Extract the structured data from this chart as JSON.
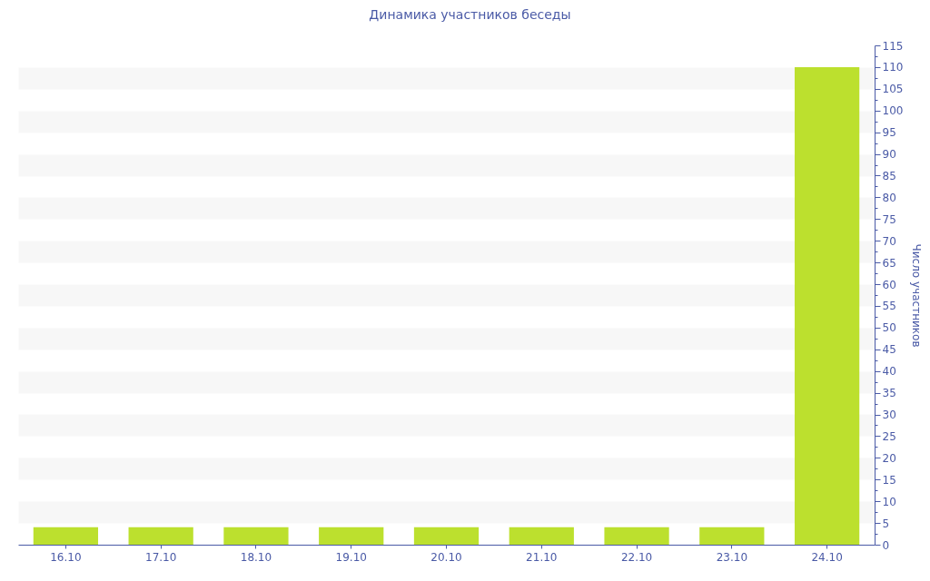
{
  "chart_data": {
    "type": "bar",
    "title": "Динамика участников беседы",
    "ylabel": "Число участников",
    "categories": [
      "16.10",
      "17.10",
      "18.10",
      "19.10",
      "20.10",
      "21.10",
      "22.10",
      "23.10",
      "24.10"
    ],
    "values": [
      4,
      4,
      4,
      4,
      4,
      4,
      4,
      4,
      110
    ],
    "color": "#bce02e",
    "ylim": [
      0,
      115
    ],
    "yticks": [
      0,
      {
        "value": 2.5,
        "label": null
      },
      5,
      {
        "value": 7.5,
        "label": null
      },
      10,
      {
        "value": 12.5,
        "label": null
      },
      15,
      {
        "value": 17.5,
        "label": null
      },
      20,
      {
        "value": 22.5,
        "label": null
      },
      25,
      {
        "value": 27.5,
        "label": null
      },
      30,
      {
        "value": 32.5,
        "label": null
      },
      35,
      {
        "value": 37.5,
        "label": null
      },
      40,
      {
        "value": 42.5,
        "label": null
      },
      45,
      {
        "value": 47.5,
        "label": null
      },
      50,
      {
        "value": 52.5,
        "label": null
      },
      55,
      {
        "value": 57.5,
        "label": null
      },
      60,
      {
        "value": 62.5,
        "label": null
      },
      65,
      {
        "value": 67.5,
        "label": null
      },
      70,
      {
        "value": 72.5,
        "label": null
      },
      75,
      {
        "value": 77.5,
        "label": null
      },
      80,
      {
        "value": 82.5,
        "label": null
      },
      85,
      {
        "value": 87.5,
        "label": null
      },
      90,
      {
        "value": 92.5,
        "label": null
      },
      95,
      {
        "value": 97.5,
        "label": null
      },
      100,
      {
        "value": 102.5,
        "label": null
      },
      105,
      {
        "value": 107.5,
        "label": null
      },
      110,
      {
        "value": 112.5,
        "label": null
      },
      115
    ],
    "grid": "y"
  }
}
